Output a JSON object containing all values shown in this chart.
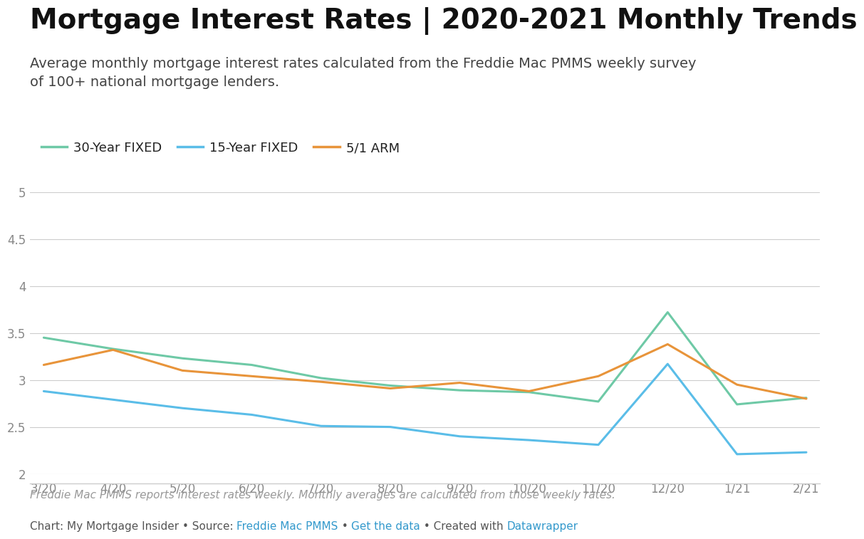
{
  "title": "Mortgage Interest Rates | 2020-2021 Monthly Trends",
  "subtitle": "Average monthly mortgage interest rates calculated from the Freddie Mac PMMS weekly survey\nof 100+ national mortgage lenders.",
  "footnote1": "Freddie Mac PMMS reports interest rates weekly. Monthly averages are calculated from those weekly rates.",
  "footnote2_plain": "Chart: My Mortgage Insider • Source: ",
  "footnote2_link1": "Freddie Mac PMMS",
  "footnote2_mid": " • ",
  "footnote2_link2": "Get the data",
  "footnote2_end": " • Created with ",
  "footnote2_link3": "Datawrapper",
  "x_labels": [
    "3/20",
    "4/20",
    "5/20",
    "6/20",
    "7/20",
    "8/20",
    "9/20",
    "10/20",
    "11/20",
    "12/20",
    "1/21",
    "2/21"
  ],
  "series_30yr": [
    3.45,
    3.33,
    3.23,
    3.16,
    3.02,
    2.94,
    2.89,
    2.87,
    2.77,
    3.72,
    2.74,
    2.81
  ],
  "series_15yr": [
    2.88,
    2.79,
    2.7,
    2.63,
    2.51,
    2.5,
    2.4,
    2.36,
    2.31,
    3.17,
    2.21,
    2.23
  ],
  "series_arm": [
    3.16,
    3.32,
    3.1,
    3.04,
    2.98,
    2.91,
    2.97,
    2.88,
    3.04,
    3.38,
    2.95,
    2.8
  ],
  "color_30yr": "#6ec9a6",
  "color_15yr": "#5abde8",
  "color_arm": "#e8943a",
  "legend_labels": [
    "30-Year FIXED",
    "15-Year FIXED",
    "5/1 ARM"
  ],
  "ylim": [
    2.0,
    5.0
  ],
  "ytick_vals": [
    2.0,
    2.5,
    3.0,
    3.5,
    4.0,
    4.5,
    5.0
  ],
  "ytick_labels": [
    "2",
    "2.5",
    "3",
    "3.5",
    "4",
    "4.5",
    "5"
  ],
  "background_color": "#ffffff",
  "grid_color": "#cccccc",
  "title_fontsize": 28,
  "subtitle_fontsize": 14,
  "axis_tick_fontsize": 12,
  "legend_fontsize": 13,
  "link_color": "#3399cc",
  "footnote_color": "#999999",
  "footnote2_text_color": "#555555"
}
